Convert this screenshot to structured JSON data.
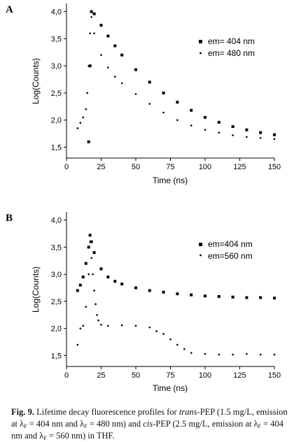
{
  "chart_data": [
    {
      "type": "scatter",
      "panel_label": "A",
      "xlabel": "Time (ns)",
      "ylabel": "Log(Counts)",
      "xlim": [
        0,
        150
      ],
      "ylim": [
        1.3,
        4.15
      ],
      "xticks": [
        0,
        25,
        50,
        75,
        100,
        125,
        150
      ],
      "xtick_labels": [
        "0",
        "25",
        "50",
        "75",
        "100",
        "125",
        "150"
      ],
      "yticks": [
        1.5,
        2.0,
        2.5,
        3.0,
        3.5,
        4.0
      ],
      "ytick_labels": [
        "1,5",
        "2,0",
        "2,5",
        "3,0",
        "3,5",
        "4,0"
      ],
      "grid": false,
      "legend_position": "top-right",
      "series": [
        {
          "name": "em= 404 nm",
          "marker": "square",
          "x": [
            16,
            17,
            18,
            20,
            25,
            30,
            35,
            40,
            50,
            60,
            70,
            80,
            90,
            100,
            110,
            120,
            130,
            140,
            150
          ],
          "y": [
            1.6,
            3.0,
            4.0,
            3.96,
            3.75,
            3.55,
            3.37,
            3.2,
            2.93,
            2.7,
            2.5,
            2.33,
            2.18,
            2.05,
            1.96,
            1.88,
            1.82,
            1.77,
            1.73
          ]
        },
        {
          "name": "em= 480 nm",
          "marker": "dot",
          "x": [
            8,
            10,
            12,
            14,
            15,
            16,
            17,
            18,
            20,
            25,
            30,
            35,
            40,
            50,
            60,
            70,
            80,
            90,
            100,
            110,
            120,
            130,
            140,
            150
          ],
          "y": [
            1.85,
            1.95,
            2.05,
            2.2,
            2.5,
            3.0,
            3.6,
            3.9,
            3.6,
            3.2,
            2.97,
            2.8,
            2.68,
            2.48,
            2.3,
            2.14,
            2.0,
            1.9,
            1.82,
            1.77,
            1.72,
            1.69,
            1.67,
            1.65
          ]
        }
      ]
    },
    {
      "type": "scatter",
      "panel_label": "B",
      "xlabel": "Time (ns)",
      "ylabel": "Log(Counts)",
      "xlim": [
        0,
        150
      ],
      "ylim": [
        1.3,
        4.15
      ],
      "xticks": [
        0,
        25,
        50,
        75,
        100,
        125,
        150
      ],
      "xtick_labels": [
        "0",
        "25",
        "50",
        "75",
        "100",
        "125",
        "150"
      ],
      "yticks": [
        1.5,
        2.0,
        2.5,
        3.0,
        3.5,
        4.0
      ],
      "ytick_labels": [
        "1,5",
        "2,0",
        "2,5",
        "3,0",
        "3,5",
        "4,0"
      ],
      "grid": false,
      "legend_position": "top-right",
      "series": [
        {
          "name": "em=404 nm",
          "marker": "square",
          "x": [
            8,
            10,
            12,
            14,
            16,
            17,
            18,
            20,
            25,
            30,
            35,
            40,
            50,
            60,
            70,
            80,
            90,
            100,
            110,
            120,
            130,
            140,
            150
          ],
          "y": [
            2.7,
            2.8,
            2.95,
            3.2,
            3.5,
            3.72,
            3.6,
            3.4,
            3.1,
            2.95,
            2.87,
            2.82,
            2.75,
            2.7,
            2.67,
            2.64,
            2.62,
            2.6,
            2.59,
            2.58,
            2.57,
            2.57,
            2.56
          ]
        },
        {
          "name": "em=560 nm",
          "marker": "dot",
          "x": [
            8,
            10,
            12,
            14,
            16,
            17,
            18,
            19,
            20,
            21,
            22,
            23,
            25,
            30,
            40,
            50,
            60,
            65,
            70,
            75,
            80,
            85,
            90,
            100,
            110,
            120,
            130,
            140,
            150
          ],
          "y": [
            1.7,
            2.0,
            2.05,
            2.4,
            3.0,
            3.6,
            3.3,
            3.0,
            2.7,
            2.45,
            2.25,
            2.15,
            2.07,
            2.05,
            2.06,
            2.05,
            2.02,
            1.95,
            1.9,
            1.8,
            1.7,
            1.62,
            1.55,
            1.53,
            1.52,
            1.52,
            1.53,
            1.52,
            1.52
          ]
        }
      ]
    }
  ],
  "caption": {
    "fig_label": "Fig. 9.",
    "t1": " Lifetime decay fluorescence profiles for ",
    "trans": "trans",
    "t2": "-PEP (1.5 mg/L, emission at λ",
    "sub": "F",
    "t3": " = 404 nm and λ",
    "t4": " = 480 nm) and ",
    "cis": "cis",
    "t5": "-PEP (2.5 mg/L, emission at λ",
    "t6": " = 404 nm and λ",
    "t7": " = 560 nm) in THF."
  }
}
